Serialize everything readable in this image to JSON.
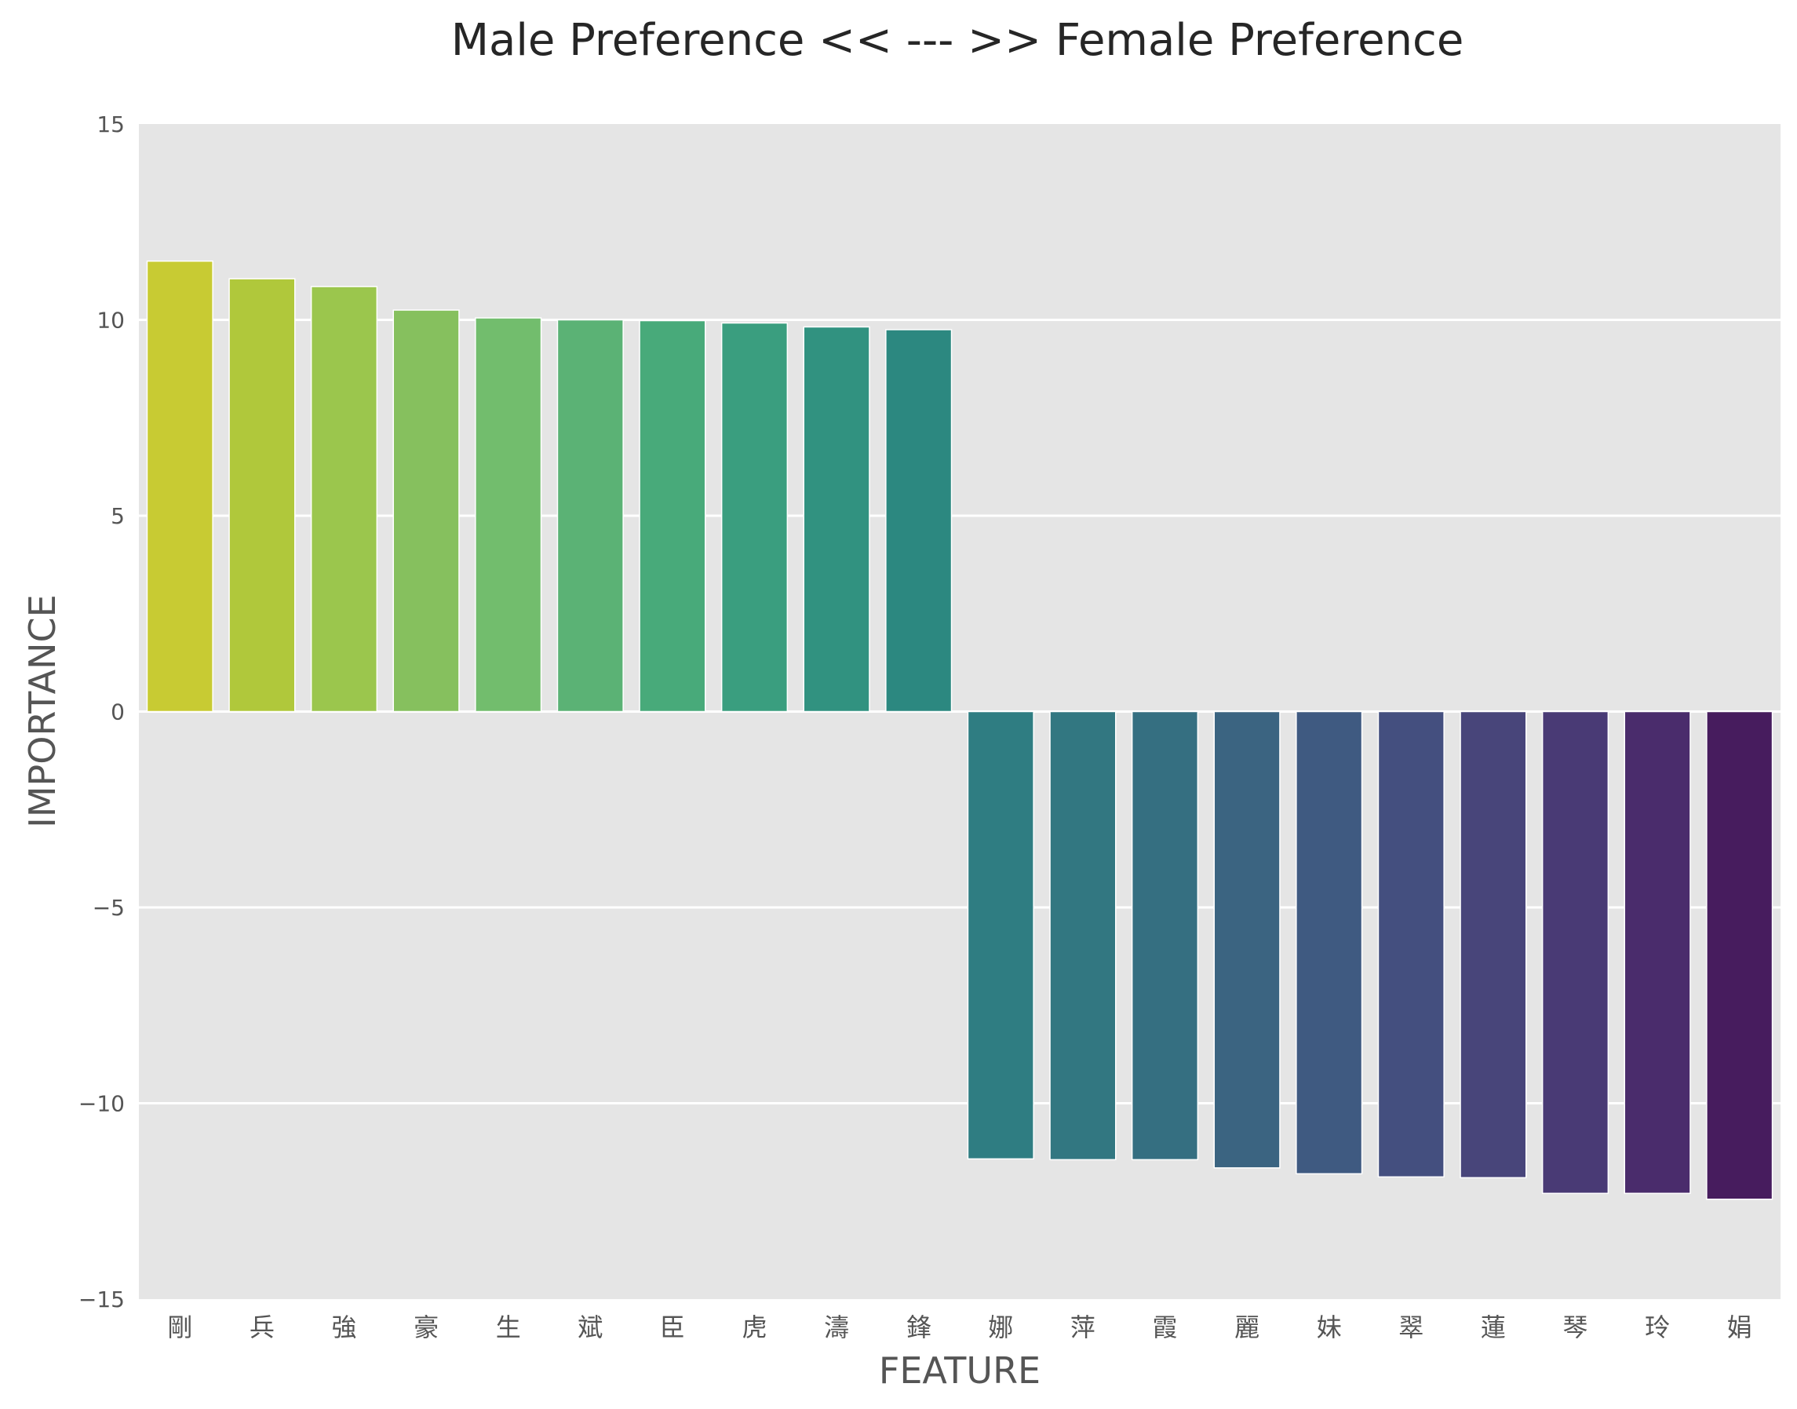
{
  "chart_data": {
    "type": "bar",
    "title": "Male Preference << --- >> Female Preference",
    "xlabel": "FEATURE",
    "ylabel": "IMPORTANCE",
    "ylim": [
      -15,
      15
    ],
    "yticks": [
      15,
      10,
      5,
      0,
      -5,
      -10,
      -15
    ],
    "ytick_labels": [
      "15",
      "10",
      "5",
      "0",
      "−5",
      "−10",
      "−15"
    ],
    "grid": true,
    "legend": "none",
    "categories": [
      "剛",
      "兵",
      "強",
      "豪",
      "生",
      "斌",
      "臣",
      "虎",
      "濤",
      "鋒",
      "娜",
      "萍",
      "霞",
      "麗",
      "妹",
      "翠",
      "蓮",
      "琴",
      "玲",
      "娟"
    ],
    "values": [
      11.5,
      11.05,
      10.85,
      10.25,
      10.05,
      10.0,
      9.98,
      9.92,
      9.82,
      9.75,
      -11.42,
      -11.44,
      -11.44,
      -11.65,
      -11.8,
      -11.88,
      -11.9,
      -12.3,
      -12.3,
      -12.45
    ],
    "colors": [
      "#c8cb33",
      "#b0c83b",
      "#9bc64d",
      "#86c05e",
      "#72bd6d",
      "#5bb275",
      "#48aa7a",
      "#3a9e7f",
      "#319280",
      "#2c8880",
      "#2f7d82",
      "#327781",
      "#356f81",
      "#3b6481",
      "#3f5a81",
      "#444f7f",
      "#48457a",
      "#493a75",
      "#4a2c6c",
      "#471c5e"
    ]
  }
}
